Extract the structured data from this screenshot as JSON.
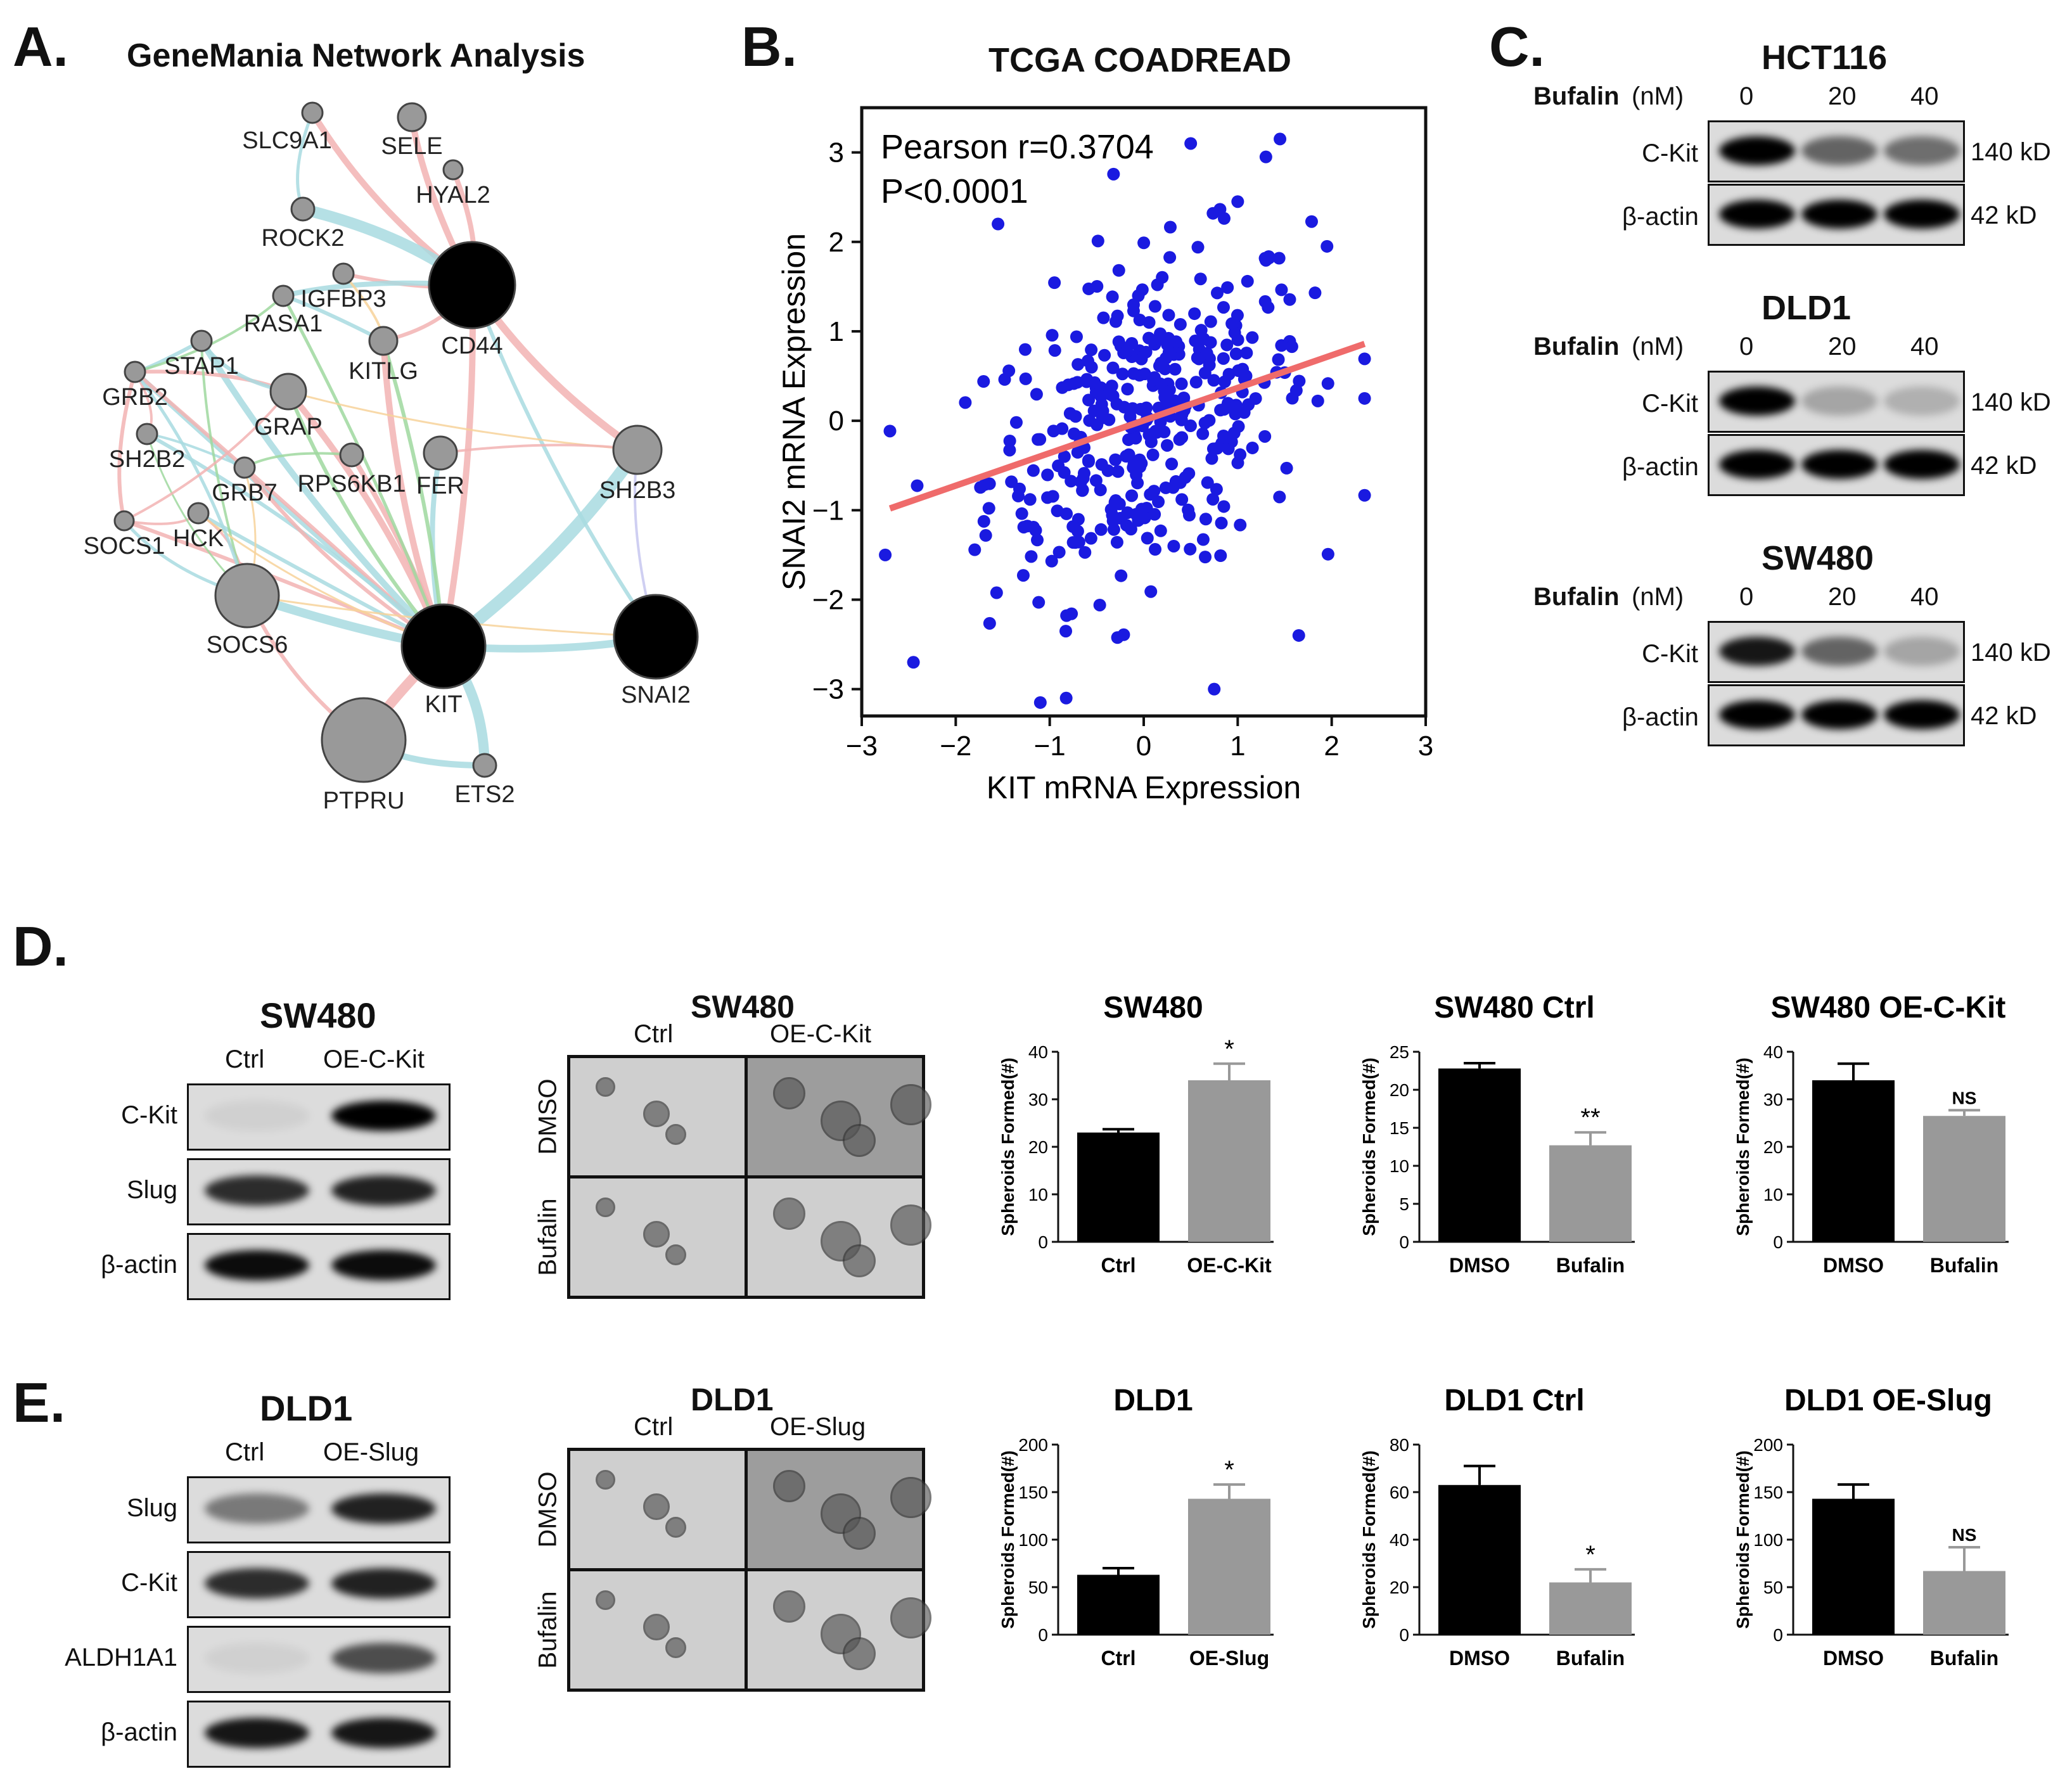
{
  "panel_labels": {
    "a": "A.",
    "b": "B.",
    "c": "C.",
    "d": "D.",
    "e": "E."
  },
  "panel_a": {
    "title": "GeneMania Network Analysis",
    "nodes": [
      {
        "id": "SLC9A1",
        "label": "SLC9A1"
      },
      {
        "id": "SELE",
        "label": "SELE"
      },
      {
        "id": "HYAL2",
        "label": "HYAL2"
      },
      {
        "id": "ROCK2",
        "label": "ROCK2"
      },
      {
        "id": "CD44",
        "label": "CD44"
      },
      {
        "id": "IGFBP3",
        "label": "IGFBP3"
      },
      {
        "id": "RASA1",
        "label": "RASA1"
      },
      {
        "id": "STAP1",
        "label": "STAP1"
      },
      {
        "id": "KITLG",
        "label": "KITLG"
      },
      {
        "id": "GRB2",
        "label": "GRB2"
      },
      {
        "id": "GRAP",
        "label": "GRAP"
      },
      {
        "id": "SH2B2",
        "label": "SH2B2"
      },
      {
        "id": "GRB7",
        "label": "GRB7"
      },
      {
        "id": "RPS6KB1",
        "label": "RPS6KB1"
      },
      {
        "id": "FER",
        "label": "FER"
      },
      {
        "id": "SH2B3",
        "label": "SH2B3"
      },
      {
        "id": "SOCS1",
        "label": "SOCS1"
      },
      {
        "id": "HCK",
        "label": "HCK"
      },
      {
        "id": "SOCS6",
        "label": "SOCS6"
      },
      {
        "id": "KIT",
        "label": "KIT"
      },
      {
        "id": "SNAI2",
        "label": "SNAI2"
      },
      {
        "id": "PTPRU",
        "label": "PTPRU"
      },
      {
        "id": "ETS2",
        "label": "ETS2"
      }
    ]
  },
  "panel_b": {
    "chart_data": {
      "type": "scatter",
      "title": "TCGA COADREAD",
      "xlabel": "KIT mRNA Expression",
      "ylabel": "SNAI2 mRNA Expression",
      "xlim": [
        -3,
        3
      ],
      "ylim": [
        -3.3,
        3.5
      ],
      "xticks": [
        -3,
        -2,
        -1,
        0,
        1,
        2,
        3
      ],
      "yticks": [
        -3,
        -2,
        -1,
        0,
        1,
        2,
        3
      ],
      "xtick_labels": [
        "−3",
        "−2",
        "−1",
        "0",
        "1",
        "2",
        "3"
      ],
      "ytick_labels": [
        "−3",
        "−2",
        "−1",
        "0",
        "1",
        "2",
        "3"
      ],
      "annotation_r": "Pearson r=0.3704",
      "annotation_p": "P<0.0001",
      "n_points": 380,
      "regression_line": {
        "x": [
          -2.7,
          2.35
        ],
        "y": [
          -0.98,
          0.86
        ]
      },
      "highlight_points": [
        {
          "x": 0.5,
          "y": 3.1
        },
        {
          "x": 1.45,
          "y": 3.15
        },
        {
          "x": 1.3,
          "y": 2.95
        },
        {
          "x": -1.55,
          "y": 2.2
        },
        {
          "x": 1.0,
          "y": 2.45
        },
        {
          "x": -2.75,
          "y": -1.5
        },
        {
          "x": -2.45,
          "y": -2.7
        },
        {
          "x": -1.1,
          "y": -3.15
        },
        {
          "x": 0.75,
          "y": -3.0
        },
        {
          "x": 2.35,
          "y": 0.25
        },
        {
          "x": 1.95,
          "y": 1.95
        },
        {
          "x": 1.65,
          "y": -2.4
        }
      ],
      "series_color": "#1a1ae0",
      "line_color": "#ef6b6b"
    }
  },
  "panel_c": {
    "dose_label_bold": "Bufalin",
    "dose_unit": "(nM)",
    "doses": [
      "0",
      "20",
      "40"
    ],
    "kd_ckit": "140 kD",
    "kd_actin": "42 kD",
    "row_ckit": "C-Kit",
    "row_actin": "β-actin",
    "cell_lines": [
      "HCT116",
      "DLD1",
      "SW480"
    ]
  },
  "panel_d": {
    "blot": {
      "title": "SW480",
      "columns": [
        "Ctrl",
        "OE-C-Kit"
      ],
      "rows": [
        "C-Kit",
        "Slug",
        "β-actin"
      ]
    },
    "images": {
      "title": "SW480",
      "columns": [
        "Ctrl",
        "OE-C-Kit"
      ],
      "rows": [
        "DMSO",
        "Bufalin"
      ]
    },
    "chart_data": [
      {
        "type": "bar",
        "title": "SW480",
        "ylabel": "Spheroids Formed(#)",
        "categories": [
          "Ctrl",
          "OE-C-Kit"
        ],
        "values": [
          23,
          34
        ],
        "errors": [
          0.7,
          3.5
        ],
        "ylim": [
          0,
          40
        ],
        "yticks": [
          0,
          10,
          20,
          30,
          40
        ],
        "sig": [
          "",
          "*"
        ],
        "colors": [
          "#000000",
          "#999999"
        ]
      },
      {
        "type": "bar",
        "title": "SW480 Ctrl",
        "ylabel": "Spheroids Formed(#)",
        "categories": [
          "DMSO",
          "Bufalin"
        ],
        "values": [
          22.8,
          12.7
        ],
        "errors": [
          0.7,
          1.7
        ],
        "ylim": [
          0,
          25
        ],
        "yticks": [
          0,
          5,
          10,
          15,
          20,
          25
        ],
        "sig": [
          "",
          "**"
        ],
        "colors": [
          "#000000",
          "#999999"
        ]
      },
      {
        "type": "bar",
        "title": "SW480 OE-C-Kit",
        "ylabel": "Spheroids Formed(#)",
        "categories": [
          "DMSO",
          "Bufalin"
        ],
        "values": [
          34,
          26.5
        ],
        "errors": [
          3.5,
          1.2
        ],
        "ylim": [
          0,
          40
        ],
        "yticks": [
          0,
          10,
          20,
          30,
          40
        ],
        "sig": [
          "",
          "NS"
        ],
        "colors": [
          "#000000",
          "#999999"
        ]
      }
    ]
  },
  "panel_e": {
    "blot": {
      "title": "DLD1",
      "columns": [
        "Ctrl",
        "OE-Slug"
      ],
      "rows": [
        "Slug",
        "C-Kit",
        "ALDH1A1",
        "β-actin"
      ]
    },
    "images": {
      "title": "DLD1",
      "columns": [
        "Ctrl",
        "OE-Slug"
      ],
      "rows": [
        "DMSO",
        "Bufalin"
      ]
    },
    "chart_data": [
      {
        "type": "bar",
        "title": "DLD1",
        "ylabel": "Spheroids Formed(#)",
        "categories": [
          "Ctrl",
          "OE-Slug"
        ],
        "values": [
          63,
          143
        ],
        "errors": [
          7,
          15
        ],
        "ylim": [
          0,
          200
        ],
        "yticks": [
          0,
          50,
          100,
          150,
          200
        ],
        "sig": [
          "",
          "*"
        ],
        "colors": [
          "#000000",
          "#999999"
        ]
      },
      {
        "type": "bar",
        "title": "DLD1 Ctrl",
        "ylabel": "Spheroids Formed(#)",
        "categories": [
          "DMSO",
          "Bufalin"
        ],
        "values": [
          63,
          22
        ],
        "errors": [
          8,
          5.5
        ],
        "ylim": [
          0,
          80
        ],
        "yticks": [
          0,
          20,
          40,
          60,
          80
        ],
        "sig": [
          "",
          "*"
        ],
        "colors": [
          "#000000",
          "#999999"
        ]
      },
      {
        "type": "bar",
        "title": "DLD1 OE-Slug",
        "ylabel": "Spheroids Formed(#)",
        "categories": [
          "DMSO",
          "Bufalin"
        ],
        "values": [
          143,
          67
        ],
        "errors": [
          15,
          25
        ],
        "ylim": [
          0,
          200
        ],
        "yticks": [
          0,
          50,
          100,
          150,
          200
        ],
        "sig": [
          "",
          "NS"
        ],
        "colors": [
          "#000000",
          "#999999"
        ]
      }
    ]
  }
}
